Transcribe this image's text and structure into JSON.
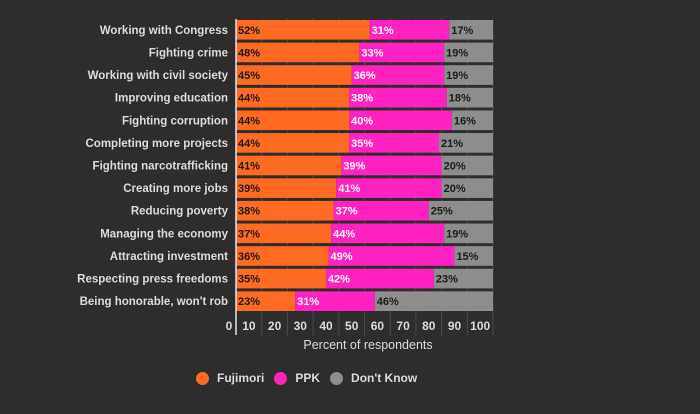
{
  "chart_data": {
    "type": "bar",
    "orientation": "horizontal",
    "stacked": true,
    "title": "",
    "xlabel": "Percent of respondents",
    "ylabel": "",
    "xlim": [
      0,
      100
    ],
    "xticks": [
      "0",
      "10",
      "20",
      "30",
      "40",
      "50",
      "60",
      "70",
      "80",
      "90",
      "100"
    ],
    "grid": true,
    "legend_position": "bottom",
    "categories": [
      "Working with Congress",
      "Fighting crime",
      "Working with civil society",
      "Improving education",
      "Fighting corruption",
      "Completing more projects",
      "Fighting narcotrafficking",
      "Creating more jobs",
      "Reducing poverty",
      "Managing the economy",
      "Attracting investment",
      "Respecting press freedoms",
      "Being honorable, won't rob"
    ],
    "series": [
      {
        "name": "Fujimori",
        "color": "#ff6a22",
        "label_color": "#1a1a1a",
        "values": [
          52,
          48,
          45,
          44,
          44,
          44,
          41,
          39,
          38,
          37,
          36,
          35,
          23
        ]
      },
      {
        "name": "PPK",
        "color": "#ff22c0",
        "label_color": "#ffffff",
        "values": [
          31,
          33,
          36,
          38,
          40,
          35,
          39,
          41,
          37,
          44,
          49,
          42,
          31
        ]
      },
      {
        "name": "Don't Know",
        "color": "#8e8d8e",
        "label_color": "#1a1a1a",
        "values": [
          17,
          19,
          19,
          18,
          16,
          21,
          20,
          20,
          25,
          19,
          15,
          23,
          46
        ]
      }
    ]
  },
  "legend": {
    "items": [
      {
        "label": "Fujimori",
        "color": "#ff6a22"
      },
      {
        "label": "PPK",
        "color": "#ff22c0"
      },
      {
        "label": "Don't Know",
        "color": "#8e8d8e"
      }
    ]
  }
}
